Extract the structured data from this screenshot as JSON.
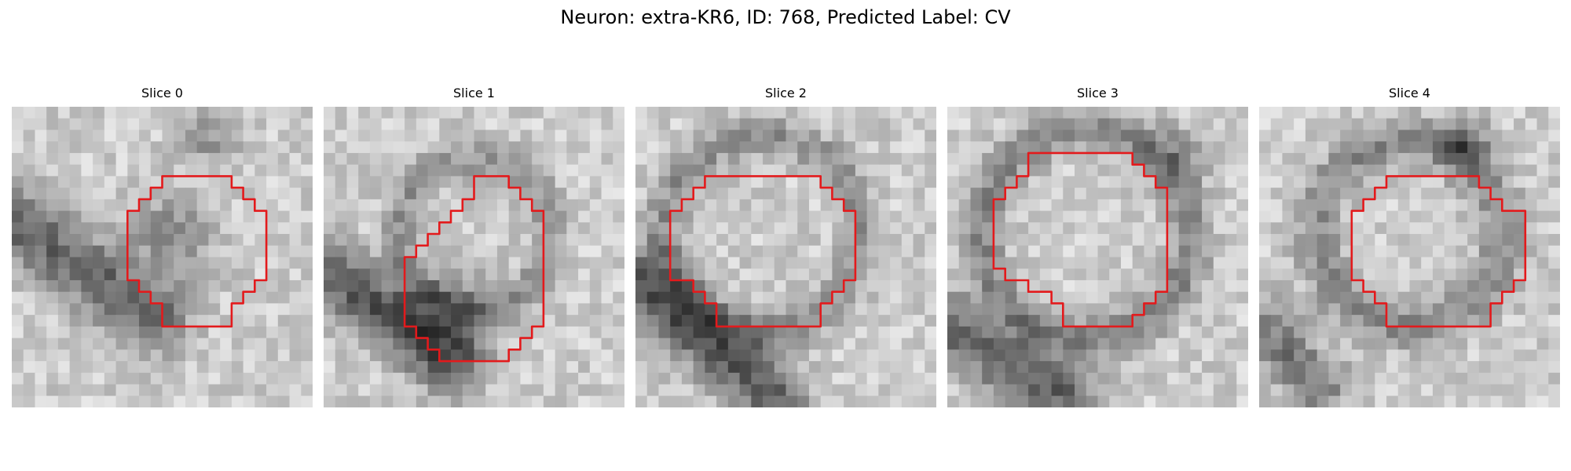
{
  "figure": {
    "title": "Neuron: extra-KR6, ID: 768, Predicted Label: CV",
    "contour_color": "#e31a1c",
    "slices": [
      {
        "label": "Slice 0"
      },
      {
        "label": "Slice 1"
      },
      {
        "label": "Slice 2"
      },
      {
        "label": "Slice 3"
      },
      {
        "label": "Slice 4"
      }
    ]
  }
}
